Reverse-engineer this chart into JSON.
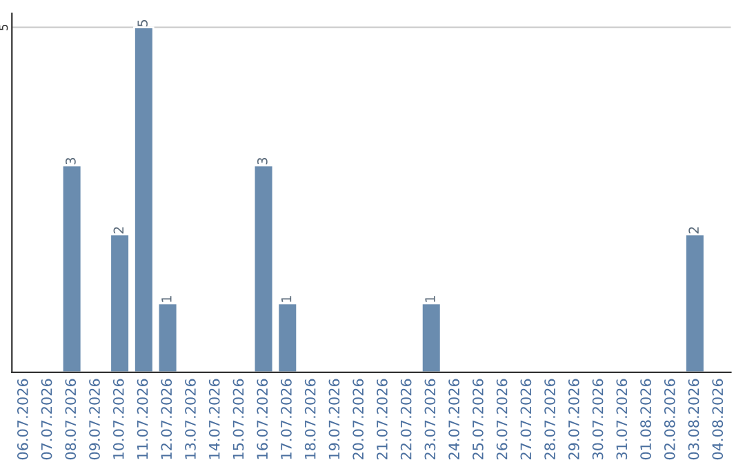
{
  "chart_data": {
    "type": "bar",
    "categories": [
      "06.07.2026",
      "07.07.2026",
      "08.07.2026",
      "09.07.2026",
      "10.07.2026",
      "11.07.2026",
      "12.07.2026",
      "13.07.2026",
      "14.07.2026",
      "15.07.2026",
      "16.07.2026",
      "17.07.2026",
      "18.07.2026",
      "19.07.2026",
      "20.07.2026",
      "21.07.2026",
      "22.07.2026",
      "23.07.2026",
      "24.07.2026",
      "25.07.2026",
      "26.07.2026",
      "27.07.2026",
      "28.07.2026",
      "29.07.2026",
      "30.07.2026",
      "31.07.2026",
      "01.08.2026",
      "02.08.2026",
      "03.08.2026",
      "04.08.2026"
    ],
    "values": [
      null,
      null,
      3,
      null,
      2,
      5,
      1,
      null,
      null,
      null,
      3,
      1,
      null,
      null,
      null,
      null,
      null,
      1,
      null,
      null,
      null,
      null,
      null,
      null,
      null,
      null,
      null,
      null,
      2,
      null
    ],
    "value_labels": [
      null,
      null,
      "3",
      null,
      "2",
      "5",
      "1",
      null,
      null,
      null,
      "3",
      "1",
      null,
      null,
      null,
      null,
      null,
      "1",
      null,
      null,
      null,
      null,
      null,
      null,
      null,
      null,
      null,
      null,
      "2",
      null
    ],
    "color": "#6a8caf",
    "ylim": [
      0,
      5.2
    ],
    "yticks": [
      5
    ],
    "grid": "y",
    "legend": false
  }
}
